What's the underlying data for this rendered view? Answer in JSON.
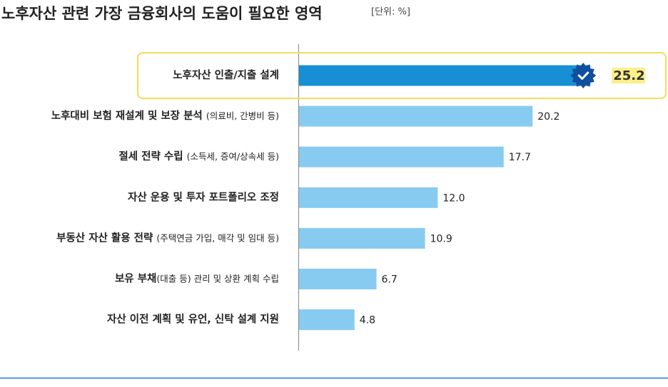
{
  "chart_data": {
    "type": "bar",
    "orientation": "horizontal",
    "title": "노후자산 관련 가장 금융회사의 도움이 필요한 영역",
    "unit": "[단위: %]",
    "categories": [
      "노후자산 인출/지출 설계",
      "노후대비 보험 재설계 및 보장 분석 (의료비, 간병비 등)",
      "절세 전략 수립 (소득세, 증여/상속세 등)",
      "자산 운용 및 투자 포트폴리오 조정",
      "부동산 자산 활용 전략 (주택연금 가입, 매각 및 임대 등)",
      "보유 부채(대출 등) 관리 및 상환 계획 수립",
      "자산 이전 계획 및 유언, 신탁 설계 지원"
    ],
    "values": [
      25.2,
      20.2,
      17.7,
      12.0,
      10.9,
      6.7,
      4.8
    ],
    "value_labels": [
      "25.2",
      "20.2",
      "17.7",
      "12.0",
      "10.9",
      "6.7",
      "4.8"
    ],
    "colors": [
      "#168fd5",
      "#88cbf0",
      "#88cbf0",
      "#88cbf0",
      "#88cbf0",
      "#88cbf0",
      "#88cbf0"
    ],
    "highlight": 0
  }
}
